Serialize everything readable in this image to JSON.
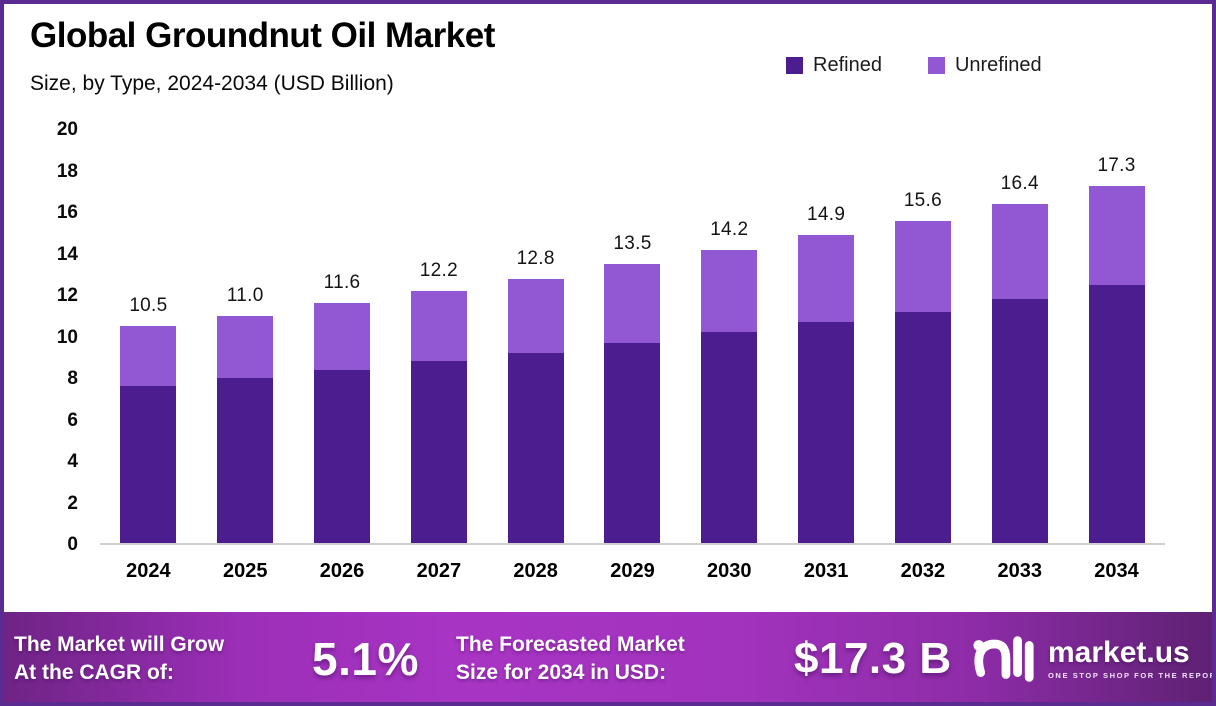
{
  "frame": {
    "border_color": "#5C2B91",
    "background": "#FFFFFF"
  },
  "header": {
    "title": "Global Groundnut Oil Market",
    "subtitle": "Size, by Type, 2024-2034 (USD Billion)"
  },
  "legend": {
    "items": [
      {
        "label": "Refined",
        "color": "#4C1D8F"
      },
      {
        "label": "Unrefined",
        "color": "#9258D4"
      }
    ]
  },
  "chart_data": {
    "type": "bar",
    "stacked": true,
    "title": "Global Groundnut Oil Market",
    "subtitle": "Size, by Type, 2024-2034 (USD Billion)",
    "unit": "USD Billion",
    "categories": [
      "2024",
      "2025",
      "2026",
      "2027",
      "2028",
      "2029",
      "2030",
      "2031",
      "2032",
      "2033",
      "2034"
    ],
    "series": [
      {
        "name": "Refined",
        "color": "#4C1D8F",
        "values": [
          7.6,
          8.0,
          8.4,
          8.8,
          9.2,
          9.7,
          10.2,
          10.7,
          11.2,
          11.8,
          12.5
        ]
      },
      {
        "name": "Unrefined",
        "color": "#9258D4",
        "values": [
          2.9,
          3.0,
          3.2,
          3.4,
          3.6,
          3.8,
          4.0,
          4.2,
          4.4,
          4.6,
          4.8
        ]
      }
    ],
    "totals": [
      10.5,
      11.0,
      11.6,
      12.2,
      12.8,
      13.5,
      14.2,
      14.9,
      15.6,
      16.4,
      17.3
    ],
    "total_labels": [
      "10.5",
      "11.0",
      "11.6",
      "12.2",
      "12.8",
      "13.5",
      "14.2",
      "14.9",
      "15.6",
      "16.4",
      "17.3"
    ],
    "xlabel": "",
    "ylabel": "",
    "ylim": [
      0,
      20
    ],
    "yticks": [
      0,
      2,
      4,
      6,
      8,
      10,
      12,
      14,
      16,
      18,
      20
    ],
    "grid": false,
    "legend_position": "top-right"
  },
  "banner": {
    "cagr_label_line1": "The Market will Grow",
    "cagr_label_line2": "At the CAGR of:",
    "cagr_value": "5.1%",
    "forecast_label_line1": "The Forecasted Market",
    "forecast_label_line2": "Size for 2034 in USD:",
    "forecast_value": "$17.3 B",
    "logo_text": "market.us",
    "logo_tagline": "ONE STOP SHOP FOR THE REPORTS",
    "gradient_colors": [
      "#6E2384",
      "#A834C4",
      "#5E2173"
    ]
  }
}
